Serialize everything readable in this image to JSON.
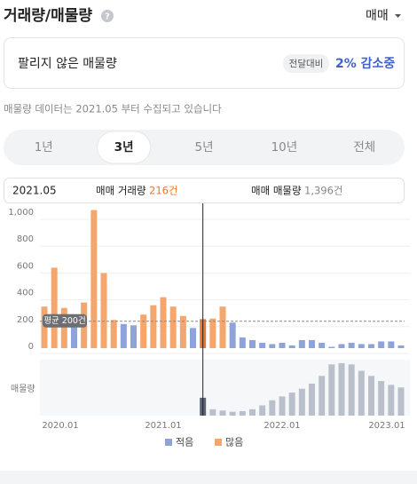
{
  "header": {
    "title": "거래량/매물량",
    "menu": "매매"
  },
  "card": {
    "label": "팔리지 않은 매물량",
    "badge": "전달대비",
    "change": "2% 감소중"
  },
  "note": "매물량 데이터는 2021.05 부터 수집되고 있습니다",
  "tabs": {
    "items": [
      "1년",
      "3년",
      "5년",
      "10년",
      "전체"
    ],
    "selected": 1
  },
  "tooltip": {
    "date": "2021.05",
    "volume_label": "매매 거래량",
    "volume": "216건",
    "stock_label": "매매 매물량",
    "stock": "1,396건"
  },
  "chart_data": [
    {
      "type": "bar",
      "categories": [
        "2020.01",
        null,
        null,
        null,
        null,
        null,
        null,
        null,
        null,
        null,
        null,
        null,
        "2021.01",
        null,
        null,
        null,
        null,
        null,
        null,
        null,
        null,
        null,
        null,
        null,
        "2022.01",
        null,
        null,
        null,
        null,
        null,
        null,
        null,
        null,
        null,
        null,
        null,
        "2023.01"
      ],
      "values": [
        310,
        600,
        300,
        190,
        340,
        1030,
        560,
        210,
        180,
        170,
        250,
        320,
        380,
        310,
        240,
        150,
        216,
        220,
        310,
        190,
        80,
        60,
        40,
        30,
        40,
        20,
        60,
        60,
        40,
        10,
        30,
        40,
        30,
        30,
        50,
        50,
        20
      ],
      "ylim": [
        0,
        1060
      ],
      "yticks": [
        0,
        200,
        400,
        600,
        800,
        {
          "value": 1000,
          "label": "1,000"
        }
      ],
      "grid": true,
      "average": {
        "value": 200,
        "label": "평균 200건"
      },
      "selected": 16,
      "selected_color": "#e8782f",
      "legend": [
        {
          "name": "적음",
          "color": "#8fa3db"
        },
        {
          "name": "많음",
          "color": "#f5a66c"
        }
      ]
    },
    {
      "type": "bar",
      "ylabel": "매물량",
      "values": [
        null,
        null,
        null,
        null,
        null,
        null,
        null,
        null,
        null,
        null,
        null,
        null,
        null,
        null,
        null,
        null,
        1396,
        500,
        400,
        300,
        350,
        500,
        800,
        1200,
        1500,
        1800,
        2100,
        2500,
        3100,
        4000,
        4100,
        4000,
        3500,
        3100,
        2700,
        2400,
        2200
      ],
      "ylim": [
        0,
        4300
      ],
      "color": "#b9c0cc",
      "selected_color": "#5b6577"
    }
  ]
}
